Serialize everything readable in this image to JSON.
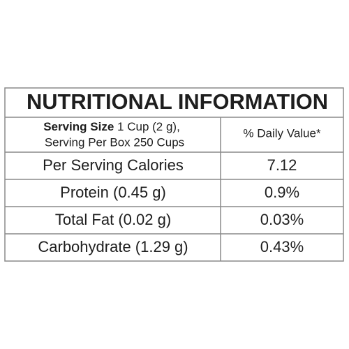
{
  "title": "NUTRITIONAL INFORMATION",
  "header": {
    "serving_size_label": "Serving Size",
    "serving_size": "1 Cup (2 g),",
    "serving_per_box": "Serving Per Box 250 Cups",
    "daily_value": "% Daily Value*"
  },
  "rows": [
    [
      "Per Serving Calories",
      "7.12"
    ],
    [
      "Protein (0.45 g)",
      "0.9%"
    ],
    [
      "Total Fat (0.02 g)",
      "0.03%"
    ],
    [
      "Carbohydrate (1.29 g)",
      "0.43%"
    ]
  ]
}
